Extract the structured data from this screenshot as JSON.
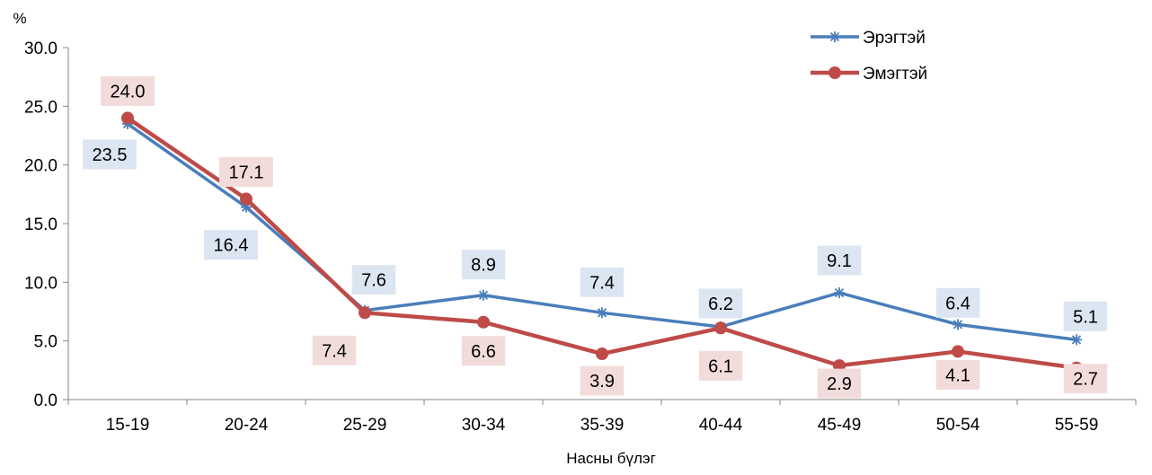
{
  "chart_data": {
    "type": "line",
    "xlabel": "Насны бүлэг",
    "ylabel": "%",
    "ylim": [
      0,
      30
    ],
    "ytick_labels": [
      "0.0",
      "5.0",
      "10.0",
      "15.0",
      "20.0",
      "25.0",
      "30.0"
    ],
    "categories": [
      "15-19",
      "20-24",
      "25-29",
      "30-34",
      "35-39",
      "40-44",
      "45-49",
      "50-54",
      "55-59"
    ],
    "grid": false,
    "legend": "top-right",
    "series": [
      {
        "name": "Эрэгтэй",
        "values": [
          23.5,
          16.4,
          7.6,
          8.9,
          7.4,
          6.2,
          9.1,
          6.4,
          5.1
        ],
        "labels": [
          "23.5",
          "16.4",
          "7.6",
          "8.9",
          "7.4",
          "6.2",
          "9.1",
          "6.4",
          "5.1"
        ],
        "color": "#4a7ebb",
        "label_bg": "#dce6f2",
        "marker": "asterisk"
      },
      {
        "name": "Эмэгтэй",
        "values": [
          24.0,
          17.1,
          7.4,
          6.6,
          3.9,
          6.1,
          2.9,
          4.1,
          2.7
        ],
        "labels": [
          "24.0",
          "17.1",
          "7.4",
          "6.6",
          "3.9",
          "6.1",
          "2.9",
          "4.1",
          "2.7"
        ],
        "color": "#be4b48",
        "label_bg": "#f2dcdb",
        "marker": "circle"
      }
    ]
  }
}
